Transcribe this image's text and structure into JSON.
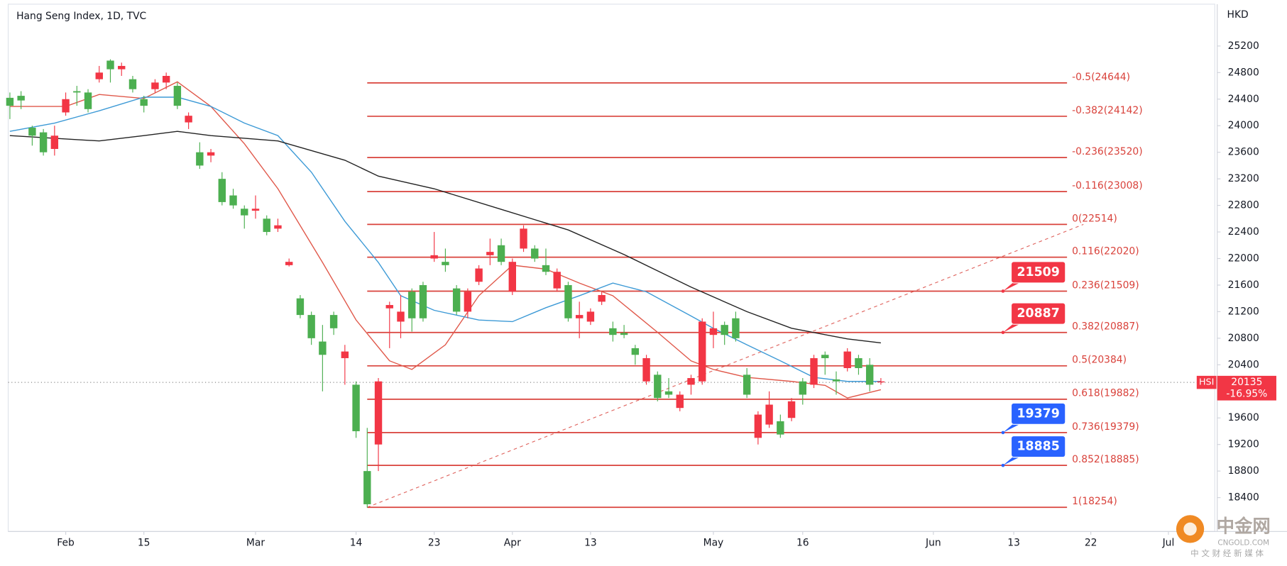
{
  "chart_data": {
    "type": "candlestick",
    "title": "Hang Seng Index, 1D, TVC",
    "currency": "HKD",
    "xlim": [
      -0.15,
      107.9
    ],
    "ylim": [
      17890,
      25830
    ],
    "yticks": [
      18400,
      18800,
      19200,
      19600,
      20000,
      20400,
      20800,
      21200,
      21600,
      22000,
      22400,
      22800,
      23200,
      23600,
      24000,
      24400,
      24800,
      25200
    ],
    "xticks": [
      {
        "value": 5,
        "label": "Feb"
      },
      {
        "value": 12,
        "label": "15"
      },
      {
        "value": 22,
        "label": "Mar"
      },
      {
        "value": 31,
        "label": "14"
      },
      {
        "value": 38,
        "label": "23"
      },
      {
        "value": 45,
        "label": "Apr"
      },
      {
        "value": 52,
        "label": "13"
      },
      {
        "value": 63,
        "label": "May"
      },
      {
        "value": 71,
        "label": "16"
      },
      {
        "value": 82.7,
        "label": "Jun"
      },
      {
        "value": 89.9,
        "label": "13"
      },
      {
        "value": 96.8,
        "label": "22"
      },
      {
        "value": 103.75,
        "label": "Jul"
      }
    ],
    "up_color": "#4caf50",
    "down_color": "#f23645",
    "open": [
      24300,
      24380,
      23850,
      23600,
      23850,
      24400,
      24500,
      24250,
      24800,
      24850,
      24900,
      24550,
      24300,
      24650,
      24750,
      24300,
      24150,
      23400,
      23600,
      22850,
      22800,
      22650,
      22750,
      22400,
      22500,
      21950,
      21150,
      20800,
      20550,
      20950,
      20600,
      19400,
      18300,
      20150,
      21300,
      21200,
      21100,
      21100,
      22050,
      21900,
      21200,
      21500,
      21850,
      22100,
      21950,
      21950,
      22450,
      22000,
      21800,
      21800,
      21100,
      21150,
      21200,
      21450,
      20850,
      20850,
      20550,
      20500,
      19900,
      19950,
      19950,
      20200,
      21050,
      20950,
      20850,
      20800,
      19950,
      19650,
      19800,
      19350,
      19850,
      19950,
      20500,
      20500,
      20150,
      20600,
      20350,
      20100,
      20150
    ],
    "high": [
      24500,
      24520,
      24000,
      23950,
      24000,
      24500,
      24600,
      24550,
      24900,
      25000,
      24950,
      24750,
      24450,
      24700,
      24800,
      24650,
      24200,
      23750,
      23650,
      23300,
      23050,
      22800,
      22950,
      22650,
      22600,
      22000,
      21450,
      21200,
      21000,
      21200,
      20700,
      20150,
      19450,
      20200,
      21350,
      21450,
      21550,
      21650,
      22400,
      22150,
      21600,
      21550,
      21900,
      22300,
      22300,
      22000,
      22500,
      22200,
      22150,
      21850,
      21650,
      21350,
      21250,
      21500,
      21050,
      21000,
      20700,
      20550,
      20300,
      20200,
      20000,
      20250,
      21100,
      21200,
      21050,
      21200,
      20350,
      19700,
      20000,
      19650,
      19900,
      20200,
      20550,
      20600,
      20300,
      20650,
      20550,
      20500,
      20200
    ],
    "low": [
      24100,
      24250,
      23700,
      23550,
      23550,
      24150,
      24300,
      24200,
      24650,
      24650,
      24750,
      24500,
      24200,
      24500,
      24550,
      24250,
      23950,
      23350,
      23450,
      22800,
      22750,
      22450,
      22600,
      22350,
      22400,
      21880,
      21100,
      20700,
      20000,
      20850,
      20100,
      19300,
      18250,
      18800,
      20650,
      20800,
      20900,
      21050,
      21950,
      21800,
      21150,
      21100,
      21600,
      21900,
      21900,
      21450,
      22100,
      21950,
      21750,
      21500,
      21050,
      20800,
      21000,
      21300,
      20750,
      20800,
      20400,
      20100,
      19850,
      19900,
      19700,
      19950,
      20100,
      20650,
      20700,
      20750,
      19900,
      19200,
      19450,
      19300,
      19550,
      19800,
      20050,
      20250,
      19950,
      20300,
      20250,
      20000,
      20100
    ],
    "close": [
      24420,
      24450,
      23970,
      23900,
      23650,
      24200,
      24520,
      24500,
      24700,
      24980,
      24850,
      24700,
      24400,
      24550,
      24650,
      24600,
      24050,
      23600,
      23550,
      23200,
      22950,
      22750,
      22720,
      22600,
      22450,
      21900,
      21400,
      21150,
      20750,
      21150,
      20500,
      20100,
      18800,
      19200,
      21250,
      21050,
      21500,
      21600,
      22000,
      21950,
      21550,
      21200,
      21650,
      22050,
      22200,
      21500,
      22150,
      22150,
      21900,
      21550,
      21600,
      21100,
      21050,
      21350,
      20950,
      20880,
      20650,
      20150,
      20250,
      20000,
      19750,
      20100,
      20150,
      20850,
      21000,
      21100,
      20250,
      19300,
      19500,
      19550,
      19600,
      20150,
      20100,
      20550,
      20180,
      20350,
      20500,
      20400,
      20135
    ],
    "moving_averages": [
      {
        "color": "#e0584a",
        "x": [
          0,
          5,
          8,
          12,
          15,
          18,
          21,
          24,
          28,
          31,
          34,
          36,
          39,
          42,
          45,
          48,
          51,
          54,
          58,
          61,
          63,
          66,
          70,
          73,
          75,
          78
        ],
        "values": [
          24290,
          24290,
          24470,
          24410,
          24660,
          24290,
          23730,
          23050,
          21940,
          21075,
          20460,
          20330,
          20700,
          21440,
          21900,
          21840,
          21630,
          21440,
          20890,
          20460,
          20330,
          20210,
          20150,
          20090,
          19900,
          20025
        ]
      },
      {
        "color": "#3d9ad6",
        "x": [
          0,
          4,
          8,
          12,
          15,
          18,
          21,
          24,
          27,
          30,
          33,
          35,
          38,
          42,
          45,
          48,
          51,
          54,
          57,
          61,
          63,
          66,
          69,
          72,
          75,
          78
        ],
        "values": [
          23915,
          24040,
          24225,
          24430,
          24430,
          24290,
          24040,
          23850,
          23300,
          22560,
          21940,
          21440,
          21220,
          21075,
          21050,
          21260,
          21440,
          21630,
          21500,
          21135,
          20950,
          20700,
          20460,
          20210,
          20150,
          20150
        ]
      },
      {
        "color": "#222222",
        "x": [
          0,
          8,
          12,
          15,
          18,
          24,
          30,
          33,
          38,
          44,
          50,
          55,
          61,
          66,
          70,
          75,
          78
        ],
        "values": [
          23850,
          23770,
          23850,
          23915,
          23850,
          23770,
          23480,
          23240,
          23050,
          22740,
          22430,
          22060,
          21570,
          21200,
          20950,
          20790,
          20730
        ]
      }
    ],
    "fib_color": "#d9423b",
    "fib_levels": [
      {
        "value": 24644,
        "label": "-0.5(24644)"
      },
      {
        "value": 24142,
        "label": "-0.382(24142)"
      },
      {
        "value": 23520,
        "label": "-0.236(23520)"
      },
      {
        "value": 23008,
        "label": "-0.116(23008)"
      },
      {
        "value": 22514,
        "label": "0(22514)"
      },
      {
        "value": 22020,
        "label": "0.116(22020)"
      },
      {
        "value": 21509,
        "label": "0.236(21509)"
      },
      {
        "value": 20887,
        "label": "0.382(20887)"
      },
      {
        "value": 20384,
        "label": "0.5(20384)"
      },
      {
        "value": 19882,
        "label": "0.618(19882)"
      },
      {
        "value": 19379,
        "label": "0.736(19379)"
      },
      {
        "value": 18885,
        "label": "0.852(18885)"
      },
      {
        "value": 18254,
        "label": "1(18254)"
      }
    ],
    "callouts": [
      {
        "value": 21509,
        "color": "#f23645"
      },
      {
        "value": 20887,
        "color": "#f23645"
      },
      {
        "value": 19379,
        "color": "#2962ff"
      },
      {
        "value": 18885,
        "color": "#2962ff"
      }
    ],
    "last": {
      "symbol": "HSI",
      "value": 20135,
      "change": {
        "value": -16.95,
        "label": "-16.95%"
      },
      "color": "#f23645"
    }
  },
  "watermark": {
    "brand": "中金网",
    "site": "CNGOLD.COM",
    "slogan": "中 文 财 经 新 媒 体"
  }
}
